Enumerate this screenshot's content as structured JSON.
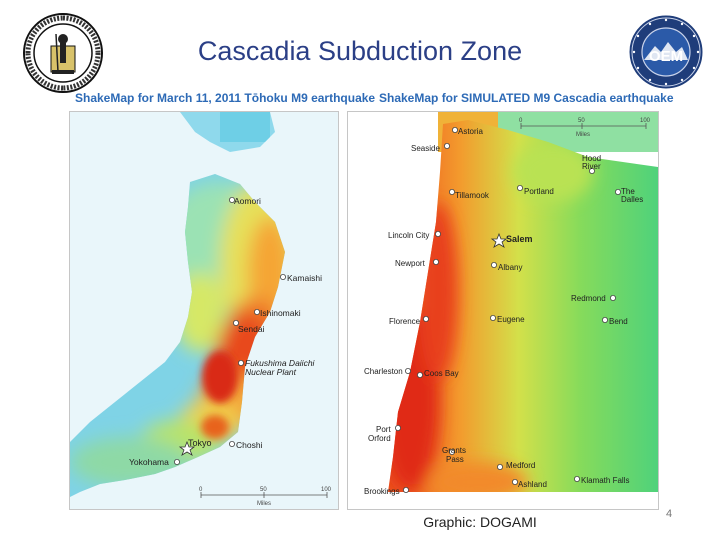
{
  "slide": {
    "title": "Cascadia Subduction Zone",
    "credit": "Graphic: DOGAMI",
    "page_number": "4"
  },
  "logos": {
    "left": {
      "icon": "geological-survey-seal-icon"
    },
    "right": {
      "icon": "oem-seal-icon",
      "text": "OEM"
    }
  },
  "japan_map": {
    "heading_prefix": "ShakeMap for March 11, 2011 ",
    "heading_bold": "Tōhoku M9 earthquake",
    "places": {
      "aomori": "Aomori",
      "kamaishi": "Kamaishi",
      "ishinomaki": "Ishinomaki",
      "sendai": "Sendai",
      "fukushima_1": "Fukushima Daiichi",
      "fukushima_2": "Nuclear Plant",
      "tokyo": "Tokyo",
      "choshi": "Choshi",
      "yokohama": "Yokohama"
    },
    "scale": {
      "t0": "0",
      "t1": "50",
      "t2": "100",
      "unit": "Miles"
    }
  },
  "oregon_map": {
    "heading_prefix": "ShakeMap for ",
    "heading_bold": "SIMULATED M9 Cascadia earthquake",
    "places": {
      "astoria": "Astoria",
      "seaside": "Seaside",
      "hood_river_1": "Hood",
      "hood_river_2": "River",
      "tillamook": "Tillamook",
      "portland": "Portland",
      "the_dalles_1": "The",
      "the_dalles_2": "Dalles",
      "lincoln_city": "Lincoln City",
      "salem": "Salem",
      "newport": "Newport",
      "albany": "Albany",
      "redmond": "Redmond",
      "florence": "Florence",
      "eugene": "Eugene",
      "bend": "Bend",
      "charleston": "Charleston",
      "coos_bay": "Coos Bay",
      "port_orford_1": "Port",
      "port_orford_2": "Orford",
      "grants_pass_1": "Grants",
      "grants_pass_2": "Pass",
      "medford": "Medford",
      "ashland": "Ashland",
      "klamath_falls": "Klamath Falls",
      "brookings": "Brookings"
    },
    "scale": {
      "t0": "0",
      "t1": "50",
      "t2": "100",
      "unit": "Miles"
    }
  }
}
